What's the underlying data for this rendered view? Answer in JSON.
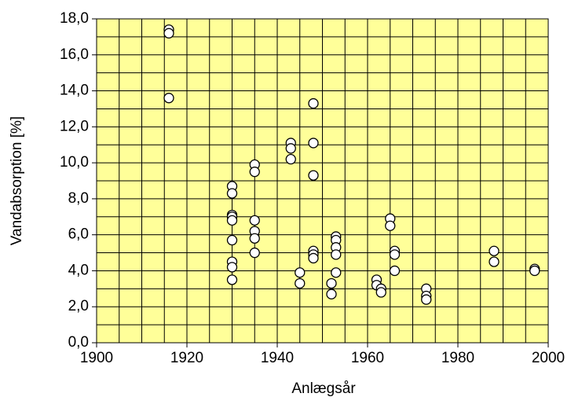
{
  "chart_data": {
    "type": "scatter",
    "xlabel": "Anlægsår",
    "ylabel": "Vandabsorption [%]",
    "x": [
      1916,
      1916,
      1916,
      1930,
      1930,
      1930,
      1930,
      1930,
      1930,
      1930,
      1930,
      1930,
      1935,
      1935,
      1935,
      1935,
      1935,
      1935,
      1943,
      1943,
      1943,
      1945,
      1945,
      1948,
      1948,
      1948,
      1948,
      1948,
      1948,
      1952,
      1952,
      1953,
      1953,
      1953,
      1953,
      1953,
      1962,
      1962,
      1963,
      1963,
      1965,
      1965,
      1966,
      1966,
      1966,
      1973,
      1973,
      1973,
      1988,
      1988,
      1997,
      1997
    ],
    "values": [
      17.4,
      17.2,
      13.6,
      8.7,
      8.3,
      7.1,
      7.0,
      6.8,
      5.7,
      4.5,
      4.2,
      3.5,
      9.9,
      9.5,
      6.8,
      6.2,
      5.8,
      5.0,
      11.1,
      10.8,
      10.2,
      3.9,
      3.3,
      13.3,
      11.1,
      9.3,
      5.1,
      4.9,
      4.7,
      3.3,
      2.7,
      5.9,
      5.7,
      5.3,
      4.9,
      3.9,
      3.5,
      3.2,
      3.0,
      2.8,
      6.9,
      6.5,
      5.1,
      4.9,
      4.0,
      3.0,
      2.6,
      2.4,
      5.1,
      4.5,
      4.1,
      4.0
    ],
    "color": "#ffffff",
    "plot_background": "#ffff99",
    "grid": true,
    "xlim": [
      1900,
      2000
    ],
    "xticks": [
      1900,
      1920,
      1940,
      1960,
      1980,
      2000
    ],
    "ylim": [
      0,
      18
    ],
    "yticks": [
      {
        "value": 0,
        "label": "0,0"
      },
      {
        "value": 2,
        "label": "2,0"
      },
      {
        "value": 4,
        "label": "4,0"
      },
      {
        "value": 6,
        "label": "6,0"
      },
      {
        "value": 8,
        "label": "8,0"
      },
      {
        "value": 10,
        "label": "10,0"
      },
      {
        "value": 12,
        "label": "12,0"
      },
      {
        "value": 14,
        "label": "14,0"
      },
      {
        "value": 16,
        "label": "16,0"
      },
      {
        "value": 18,
        "label": "18,0"
      }
    ]
  }
}
